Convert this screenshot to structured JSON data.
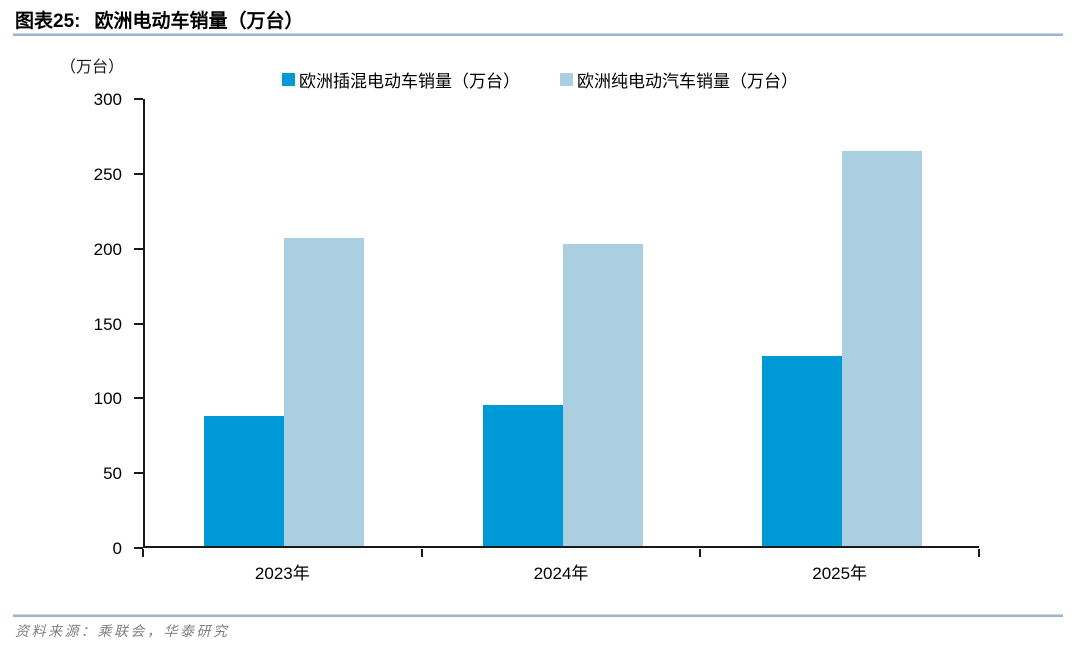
{
  "header": {
    "figure_label": "图表25:",
    "title": "欧洲电动车销量（万台）"
  },
  "chart_data": {
    "type": "bar",
    "categories": [
      "2023年",
      "2024年",
      "2025年"
    ],
    "series": [
      {
        "name": "欧洲插混电动车销量（万台）",
        "color": "#0099D8",
        "values": [
          87,
          94,
          127
        ]
      },
      {
        "name": "欧洲纯电动汽车销量（万台）",
        "color": "#A9CFE0",
        "values": [
          206,
          202,
          264
        ]
      }
    ],
    "title": "欧洲电动车销量（万台）",
    "xlabel": "",
    "ylabel": "（万台）",
    "ylim": [
      0,
      300
    ],
    "yticks": [
      0,
      50,
      100,
      150,
      200,
      250,
      300
    ],
    "grid": false,
    "legend_position": "top"
  },
  "colors": {
    "series_phev": "#0099D8",
    "series_bev": "#A9CFE0",
    "rule_line": "#9FB4C9",
    "axis": "#1A1A1A",
    "footer_text": "#7F7F7F"
  },
  "footer": {
    "source": "资料来源：乘联会，华泰研究"
  }
}
